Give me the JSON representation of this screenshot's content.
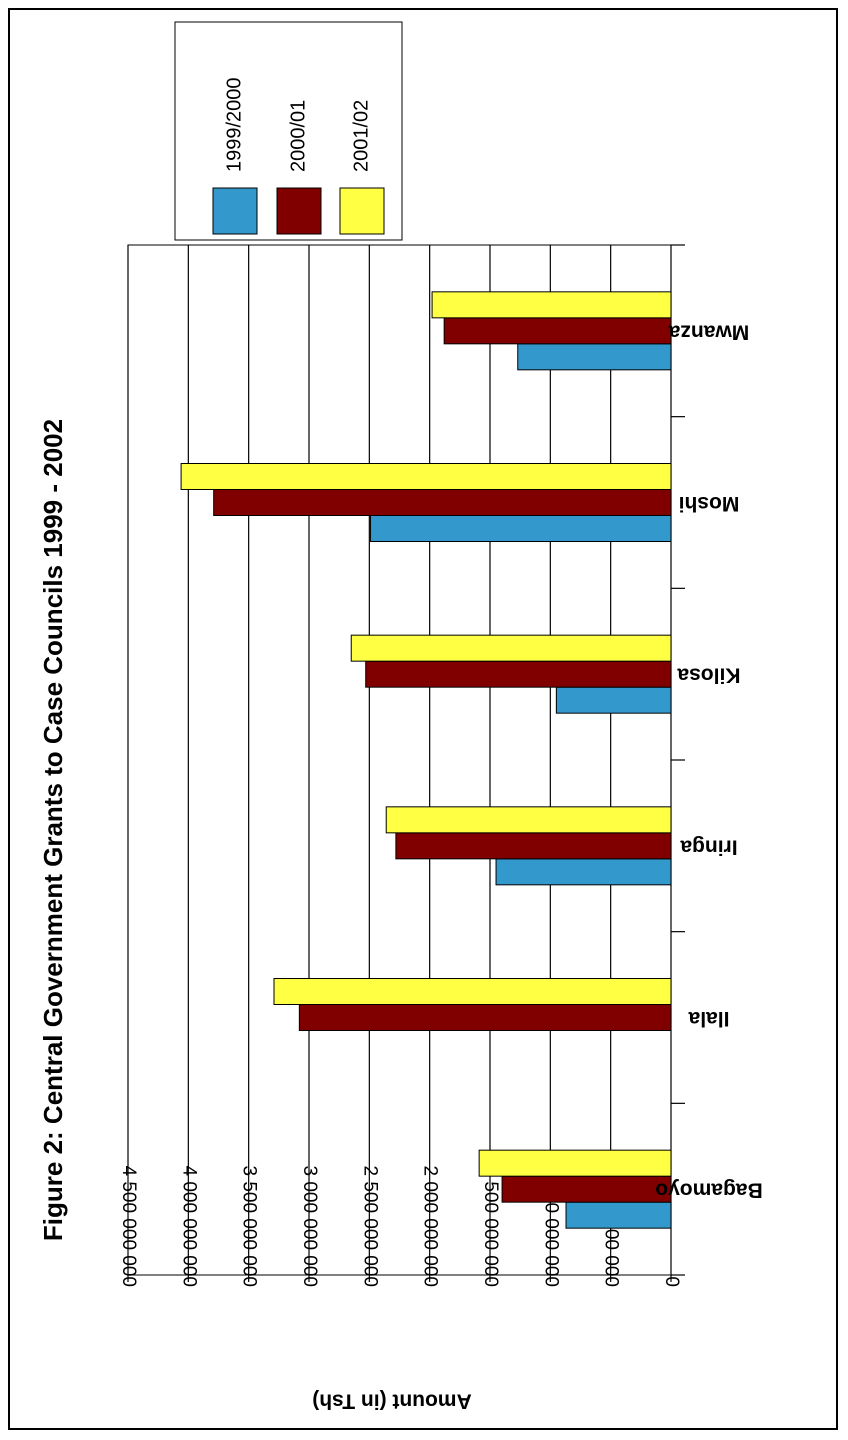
{
  "chart_data": {
    "type": "bar",
    "orientation": "horizontal",
    "title": "Figure 2: Central Government Grants to Case Councils 1999 - 2002",
    "xlabel": "",
    "ylabel": "Amount (in Tsh)",
    "ylim": [
      0,
      4500000000
    ],
    "tick_step": 500000000,
    "tick_labels": [
      "0",
      "500 000 000",
      "1 000 000 000",
      "1 500 000 000",
      "2 000 000 000",
      "2 500 000 000",
      "3 000 000 000",
      "3 500 000 000",
      "4 000 000 000",
      "4 500 000 000"
    ],
    "grid": true,
    "legend_position": "top-right",
    "categories": [
      "Bagamoyo",
      "Ilala",
      "Iringa",
      "Kilosa",
      "Moshi",
      "Mwanza"
    ],
    "series": [
      {
        "name": "1999/2000",
        "color": "#3399cc",
        "values": [
          870000000,
          0,
          1450000000,
          950000000,
          2490000000,
          1270000000
        ]
      },
      {
        "name": "2000/01",
        "color": "#800000",
        "values": [
          1400000000,
          3080000000,
          2280000000,
          2530000000,
          3790000000,
          1880000000
        ]
      },
      {
        "name": "2001/02",
        "color": "#ffff44",
        "values": [
          1590000000,
          3290000000,
          2360000000,
          2650000000,
          4060000000,
          1980000000
        ]
      }
    ]
  }
}
